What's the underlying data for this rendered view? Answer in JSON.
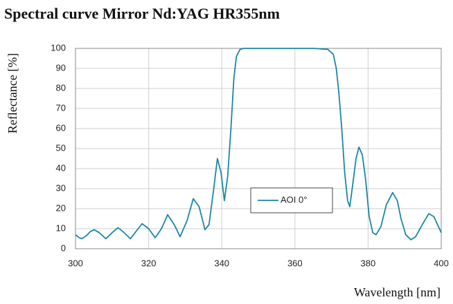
{
  "chart_data": {
    "type": "line",
    "title": "Spectral curve Mirror Nd:YAG HR355nm",
    "xlabel": "Wavelength [nm]",
    "ylabel": "Reflectance [%]",
    "x": [
      300,
      301,
      301.7,
      303,
      304,
      305.1,
      306.5,
      308.3,
      310,
      311.6,
      313,
      315,
      316.5,
      318.2,
      320,
      321.8,
      323.5,
      325.2,
      327,
      328.6,
      330.5,
      332.2,
      333.8,
      335.4,
      336.5,
      337.8,
      338.8,
      339.8,
      340.7,
      341.6,
      342.5,
      343.3,
      344,
      345,
      346,
      348,
      355,
      365,
      369,
      370.5,
      371.3,
      372,
      372.8,
      373.6,
      374.4,
      375,
      375.8,
      376.7,
      377.5,
      378.4,
      379.3,
      380.3,
      381.3,
      382.2,
      383.5,
      385,
      386.7,
      388,
      389,
      390.3,
      391.7,
      393,
      394.5,
      396.6,
      398,
      399,
      400
    ],
    "series": [
      {
        "name": "AOI 0°",
        "color": "#1a86a6",
        "values": [
          7,
          5.5,
          5,
          6.5,
          8.5,
          9.5,
          8,
          5,
          8,
          10.5,
          8.5,
          5,
          8.5,
          12.5,
          10,
          5.5,
          10,
          17,
          12,
          6,
          14,
          25,
          21,
          9.5,
          12,
          30,
          45,
          38,
          24,
          36,
          60,
          85,
          96,
          99.5,
          100,
          100,
          100,
          100,
          99.5,
          97,
          90,
          78,
          60,
          38,
          24,
          21,
          32,
          45,
          50.7,
          47,
          35,
          16,
          8,
          7,
          11,
          22,
          28,
          24,
          15,
          7,
          4.5,
          6,
          11,
          17.5,
          16,
          12,
          8
        ]
      }
    ],
    "xlim": [
      300,
      400
    ],
    "xticks": [
      300,
      320,
      340,
      360,
      380,
      400
    ],
    "ylim": [
      0,
      100
    ],
    "yticks": [
      0,
      10,
      20,
      30,
      40,
      50,
      60,
      70,
      80,
      90,
      100
    ],
    "grid": true,
    "legend": "lower center"
  }
}
